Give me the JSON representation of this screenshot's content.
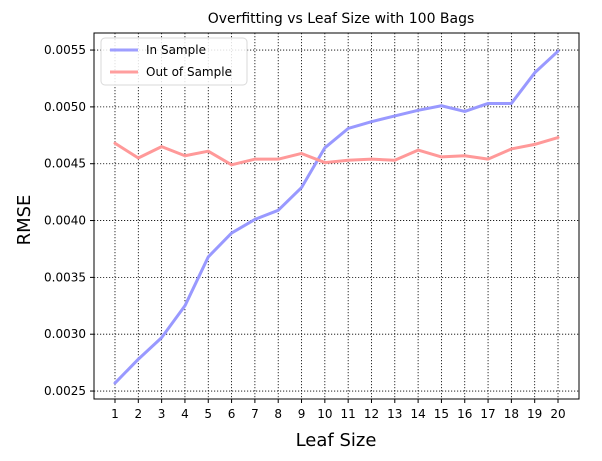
{
  "chart_data": {
    "type": "line",
    "title": "Overfitting vs Leaf Size with 100 Bags",
    "xlabel": "Leaf Size",
    "ylabel": "RMSE",
    "x": [
      1,
      2,
      3,
      4,
      5,
      6,
      7,
      8,
      9,
      10,
      11,
      12,
      13,
      14,
      15,
      16,
      17,
      18,
      19,
      20
    ],
    "xlim": [
      0.1,
      20.9
    ],
    "ylim": [
      0.00243,
      0.00565
    ],
    "xticks": [
      "1",
      "2",
      "3",
      "4",
      "5",
      "6",
      "7",
      "8",
      "9",
      "10",
      "11",
      "12",
      "13",
      "14",
      "15",
      "16",
      "17",
      "18",
      "19",
      "20"
    ],
    "yticks": [
      0.0025,
      0.003,
      0.0035,
      0.004,
      0.0045,
      0.005,
      0.0055
    ],
    "ytick_labels": [
      "0.0025",
      "0.0030",
      "0.0035",
      "0.0040",
      "0.0045",
      "0.0050",
      "0.0055"
    ],
    "grid": true,
    "legend_position": "top-left",
    "series": [
      {
        "name": "In Sample",
        "color": "#9999ff",
        "values": [
          0.00257,
          0.00278,
          0.00297,
          0.00325,
          0.00368,
          0.00389,
          0.00401,
          0.00409,
          0.00429,
          0.00464,
          0.00481,
          0.00487,
          0.00492,
          0.00497,
          0.00501,
          0.00496,
          0.00503,
          0.00503,
          0.0053,
          0.00549
        ]
      },
      {
        "name": "Out of Sample",
        "color": "#ff9999",
        "values": [
          0.00468,
          0.00455,
          0.00465,
          0.00457,
          0.00461,
          0.00449,
          0.00454,
          0.00454,
          0.00459,
          0.00451,
          0.00453,
          0.00454,
          0.00453,
          0.00462,
          0.00456,
          0.00457,
          0.00454,
          0.00463,
          0.00467,
          0.00473
        ]
      }
    ]
  }
}
